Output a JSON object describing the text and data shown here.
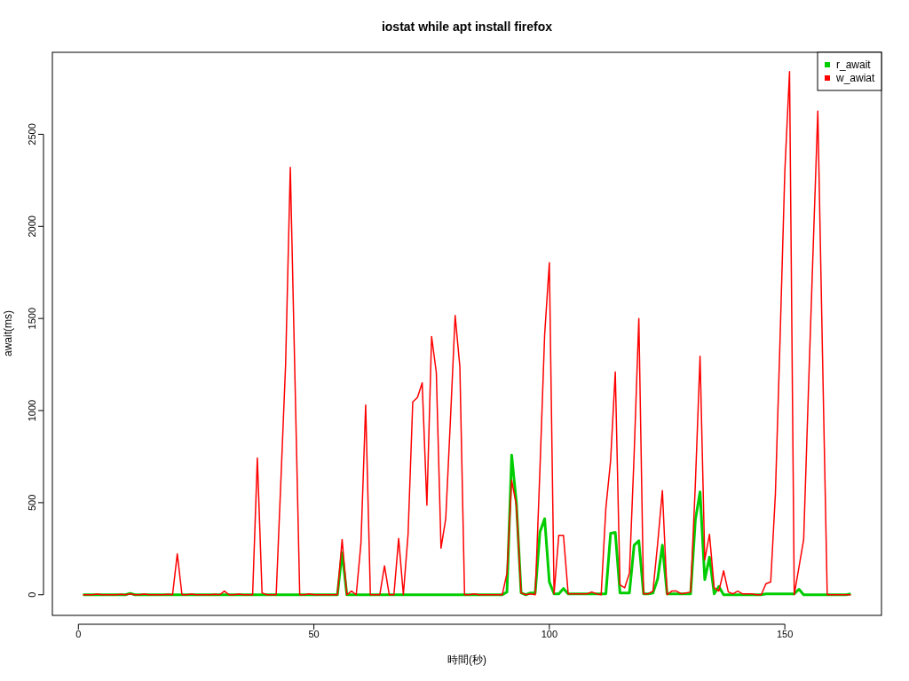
{
  "chart_data": {
    "type": "line",
    "title": "iostat while apt install firefox",
    "xlabel": "時間(秒)",
    "ylabel": "await(ms)",
    "x": [
      1,
      2,
      3,
      4,
      5,
      6,
      7,
      8,
      9,
      10,
      11,
      12,
      13,
      14,
      15,
      16,
      17,
      18,
      19,
      20,
      21,
      22,
      23,
      24,
      25,
      26,
      27,
      28,
      29,
      30,
      31,
      32,
      33,
      34,
      35,
      36,
      37,
      38,
      39,
      40,
      41,
      42,
      43,
      44,
      45,
      46,
      47,
      48,
      49,
      50,
      51,
      52,
      53,
      54,
      55,
      56,
      57,
      58,
      59,
      60,
      61,
      62,
      63,
      64,
      65,
      66,
      67,
      68,
      69,
      70,
      71,
      72,
      73,
      74,
      75,
      76,
      77,
      78,
      79,
      80,
      81,
      82,
      83,
      84,
      85,
      86,
      87,
      88,
      89,
      90,
      91,
      92,
      93,
      94,
      95,
      96,
      97,
      98,
      99,
      100,
      101,
      102,
      103,
      104,
      105,
      106,
      107,
      108,
      109,
      110,
      111,
      112,
      113,
      114,
      115,
      116,
      117,
      118,
      119,
      120,
      121,
      122,
      123,
      124,
      125,
      126,
      127,
      128,
      129,
      130,
      131,
      132,
      133,
      134,
      135,
      136,
      137,
      138,
      139,
      140,
      141,
      142,
      143,
      144,
      145,
      146,
      147,
      148,
      149,
      150,
      151,
      152,
      153,
      154,
      155,
      156,
      157,
      158,
      159,
      160,
      161,
      162,
      163,
      164
    ],
    "series": [
      {
        "name": "r_await",
        "color": "#00cd00",
        "values": [
          0,
          0,
          0,
          0,
          0,
          0,
          0,
          0,
          0,
          0,
          8,
          0,
          0,
          0,
          0,
          0,
          0,
          0,
          0,
          0,
          0,
          0,
          0,
          0,
          0,
          0,
          0,
          0,
          0,
          0,
          0,
          0,
          0,
          0,
          0,
          0,
          0,
          0,
          0,
          0,
          0,
          0,
          0,
          0,
          0,
          0,
          0,
          0,
          0,
          0,
          0,
          0,
          0,
          0,
          0,
          230,
          0,
          0,
          0,
          0,
          0,
          0,
          0,
          0,
          0,
          0,
          0,
          0,
          0,
          0,
          0,
          0,
          0,
          0,
          0,
          0,
          0,
          0,
          0,
          0,
          0,
          0,
          0,
          0,
          0,
          0,
          0,
          0,
          0,
          0,
          15,
          758,
          501,
          10,
          0,
          10,
          10,
          341,
          413,
          69,
          5,
          5,
          34,
          5,
          5,
          5,
          5,
          5,
          5,
          5,
          5,
          5,
          333,
          338,
          10,
          10,
          10,
          269,
          293,
          5,
          5,
          10,
          86,
          269,
          5,
          5,
          5,
          5,
          5,
          5,
          405,
          558,
          82,
          204,
          5,
          45,
          0,
          0,
          0,
          0,
          0,
          0,
          0,
          0,
          0,
          5,
          5,
          5,
          5,
          5,
          5,
          5,
          30,
          0,
          0,
          0,
          0,
          0,
          0,
          0,
          0,
          0,
          0,
          5
        ]
      },
      {
        "name": "w_awiat",
        "color": "#ff0000",
        "values": [
          0,
          0,
          0,
          3,
          0,
          0,
          0,
          0,
          2,
          0,
          5,
          0,
          0,
          3,
          0,
          0,
          0,
          0,
          2,
          0,
          222,
          0,
          0,
          3,
          0,
          0,
          0,
          0,
          2,
          0,
          20,
          0,
          0,
          3,
          0,
          0,
          0,
          742,
          10,
          0,
          0,
          0,
          620,
          1250,
          2320,
          1160,
          0,
          0,
          5,
          0,
          0,
          0,
          0,
          0,
          0,
          300,
          0,
          20,
          0,
          280,
          1030,
          0,
          0,
          0,
          157,
          0,
          0,
          306,
          0,
          327,
          1047,
          1071,
          1151,
          486,
          1402,
          1207,
          253,
          413,
          950,
          1516,
          1238,
          0,
          0,
          5,
          0,
          0,
          0,
          0,
          0,
          0,
          117,
          622,
          486,
          10,
          0,
          5,
          0,
          678,
          1411,
          1803,
          5,
          322,
          322,
          5,
          5,
          5,
          5,
          5,
          15,
          5,
          0,
          470,
          726,
          1210,
          53,
          38,
          117,
          760,
          1500,
          5,
          5,
          20,
          279,
          566,
          0,
          20,
          20,
          5,
          10,
          15,
          600,
          1295,
          189,
          328,
          38,
          20,
          130,
          15,
          5,
          20,
          5,
          5,
          5,
          0,
          0,
          60,
          70,
          550,
          1400,
          2300,
          2840,
          0,
          150,
          300,
          1100,
          1870,
          2626,
          1300,
          0,
          0,
          0,
          0,
          0,
          0
        ]
      }
    ],
    "xlim": [
      -5.52,
      170.52
    ],
    "ylim": [
      -112,
      2945
    ],
    "xticks": [
      0,
      50,
      100,
      150
    ],
    "yticks": [
      0,
      500,
      1000,
      1500,
      2000,
      2500
    ],
    "legend": "top right",
    "marker": "none",
    "line_style": "solid",
    "grid": false
  }
}
